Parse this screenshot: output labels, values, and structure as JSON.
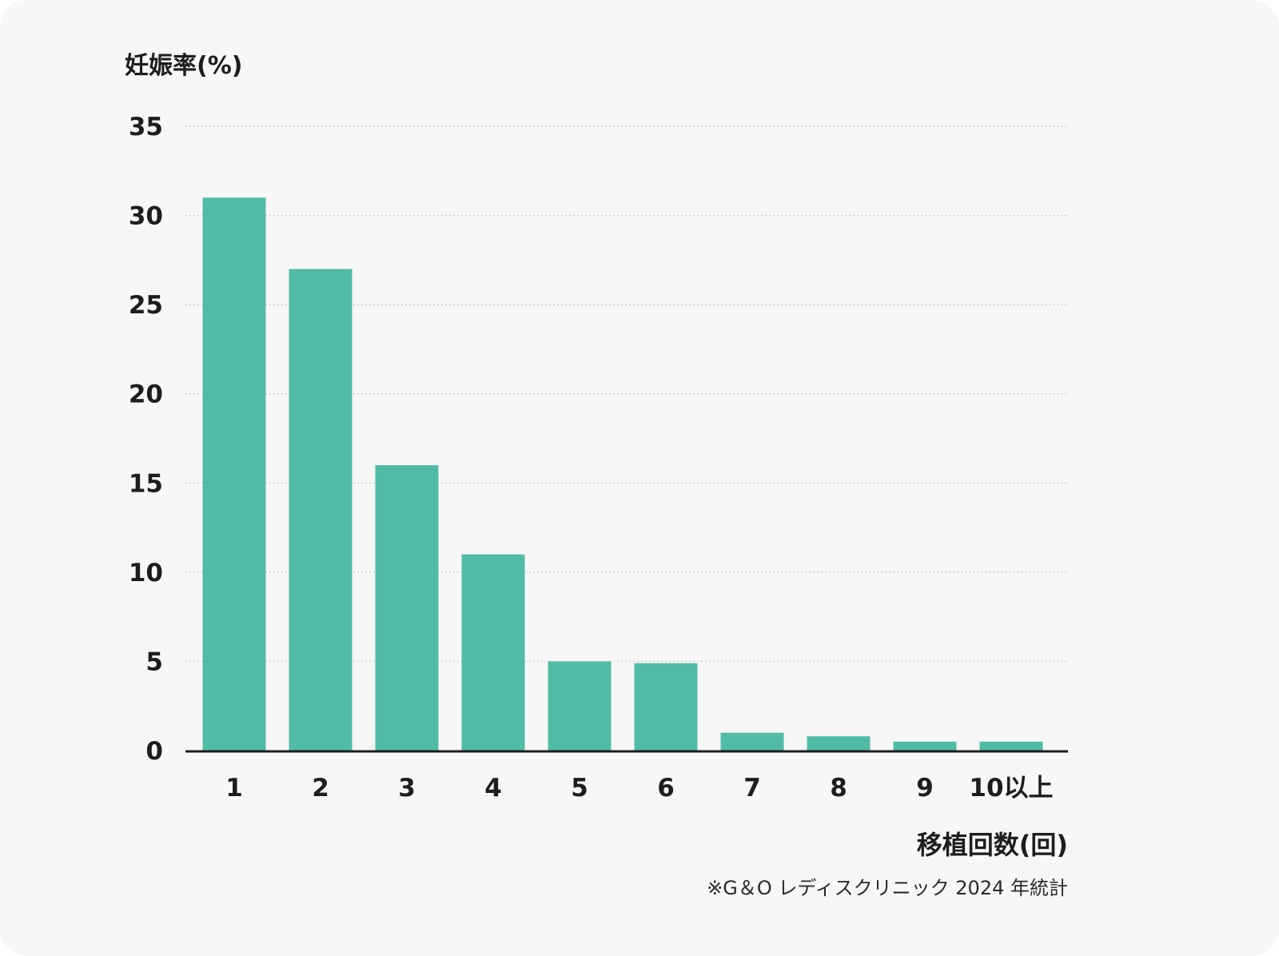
{
  "colors": {
    "bar": "#51bca6",
    "axis": "#1d1d1d",
    "grid": "#cfcfcf",
    "background": "#f7f7f7"
  },
  "chart_data": {
    "type": "bar",
    "ylabel": "妊娠率(%)",
    "xlabel": "移植回数(回)",
    "note": "※G＆O レディスクリニック 2024 年統計",
    "categories": [
      "1",
      "2",
      "3",
      "4",
      "5",
      "6",
      "7",
      "8",
      "9",
      "10以上"
    ],
    "values": [
      31,
      27,
      16,
      11,
      5,
      4.9,
      1,
      0.8,
      0.5,
      0.5
    ],
    "ylim": [
      0,
      35
    ],
    "yticks": [
      0,
      5,
      10,
      15,
      20,
      25,
      30,
      35
    ],
    "grid": true
  }
}
